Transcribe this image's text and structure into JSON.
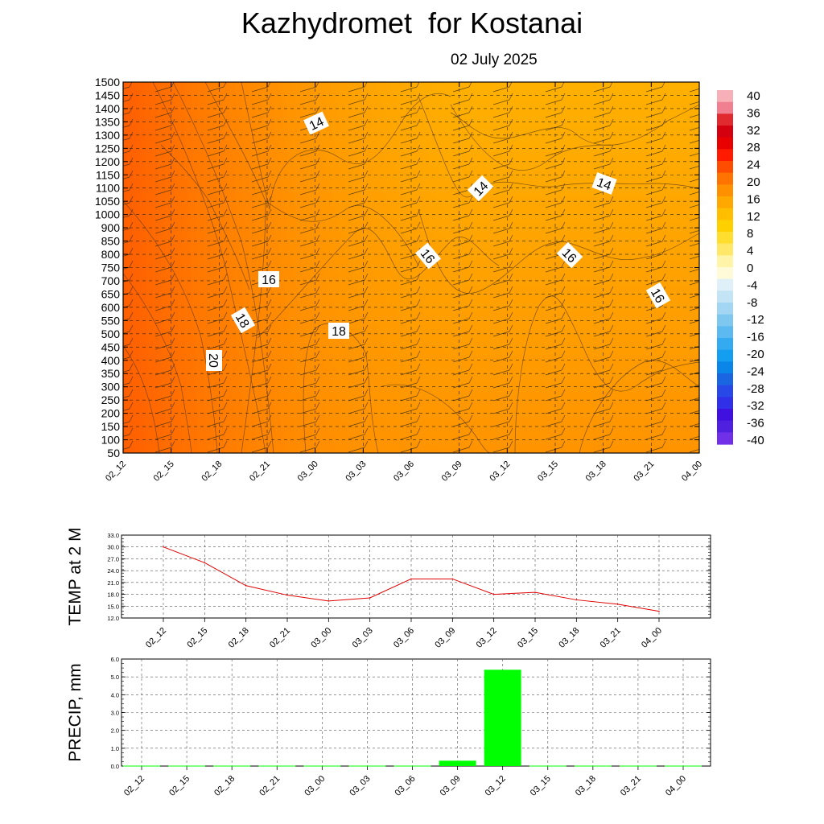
{
  "header": {
    "title": "Kazhydromet  for Kostanai",
    "date": "02 July 2025"
  },
  "chart_data": [
    {
      "type": "heatmap",
      "title": "Kazhydromet  for Kostanai",
      "subtitle": "02 July 2025",
      "x_ticks": [
        "02_12",
        "02_15",
        "02_18",
        "02_21",
        "03_00",
        "03_03",
        "03_06",
        "03_09",
        "03_12",
        "03_15",
        "03_18",
        "03_21",
        "04_00"
      ],
      "y_ticks": [
        50,
        100,
        150,
        200,
        250,
        300,
        350,
        400,
        450,
        500,
        550,
        600,
        650,
        700,
        750,
        800,
        850,
        900,
        1000,
        1050,
        1100,
        1150,
        1200,
        1250,
        1300,
        1350,
        1400,
        1450,
        1500
      ],
      "colorbar_labels": [
        40,
        36,
        32,
        28,
        24,
        20,
        16,
        12,
        8,
        4,
        0,
        -4,
        -8,
        -12,
        -16,
        -20,
        -24,
        -28,
        -32,
        -36,
        -40
      ],
      "colorbar_colors": [
        "#f7b0b8",
        "#f08090",
        "#e02a30",
        "#d40010",
        "#e80000",
        "#ff1a00",
        "#ff4d00",
        "#ff7300",
        "#ff9000",
        "#ffa800",
        "#ffbe00",
        "#ffd000",
        "#ffde30",
        "#ffe868",
        "#fff4a8",
        "#fffbd8",
        "#dff0f8",
        "#c2e4f4",
        "#a2d6f2",
        "#7ec8f0",
        "#5cbaf0",
        "#34aaf0",
        "#149ef0",
        "#0a86e8",
        "#1a66e0",
        "#2848e8",
        "#3030e8",
        "#4010e0",
        "#5020e0",
        "#7030e8"
      ],
      "contour_labels": [
        "14",
        "14",
        "14",
        "16",
        "16",
        "16",
        "16",
        "18",
        "18",
        "20"
      ],
      "grid": true
    },
    {
      "type": "line",
      "ylabel": "TEMP at 2 M",
      "categories": [
        "02_12",
        "02_15",
        "02_18",
        "02_21",
        "03_00",
        "03_03",
        "03_06",
        "03_09",
        "03_12",
        "03_15",
        "03_18",
        "03_21",
        "04_00"
      ],
      "values": [
        30.0,
        26.0,
        20.2,
        17.8,
        16.3,
        17.1,
        21.9,
        21.9,
        18.0,
        18.5,
        16.6,
        15.5,
        13.7
      ],
      "y_ticks": [
        "33.0",
        "30.0",
        "27.0",
        "24.0",
        "21.0",
        "18.0",
        "15.0",
        "12.0"
      ],
      "ylim": [
        12,
        33
      ],
      "color": "#e00000",
      "grid": true
    },
    {
      "type": "bar",
      "ylabel": "PRECIP, mm",
      "categories": [
        "02_12",
        "02_15",
        "02_18",
        "02_21",
        "03_00",
        "03_03",
        "03_06",
        "03_09",
        "03_12",
        "03_15",
        "03_18",
        "03_21",
        "04_00"
      ],
      "values": [
        0,
        0,
        0,
        0,
        0,
        0,
        0,
        0.3,
        5.4,
        0,
        0,
        0,
        0
      ],
      "y_ticks": [
        "6.0",
        "5.0",
        "4.0",
        "3.0",
        "2.0",
        "1.0",
        "0.0"
      ],
      "ylim": [
        0,
        6
      ],
      "color": "#00ff00",
      "grid": true
    }
  ]
}
